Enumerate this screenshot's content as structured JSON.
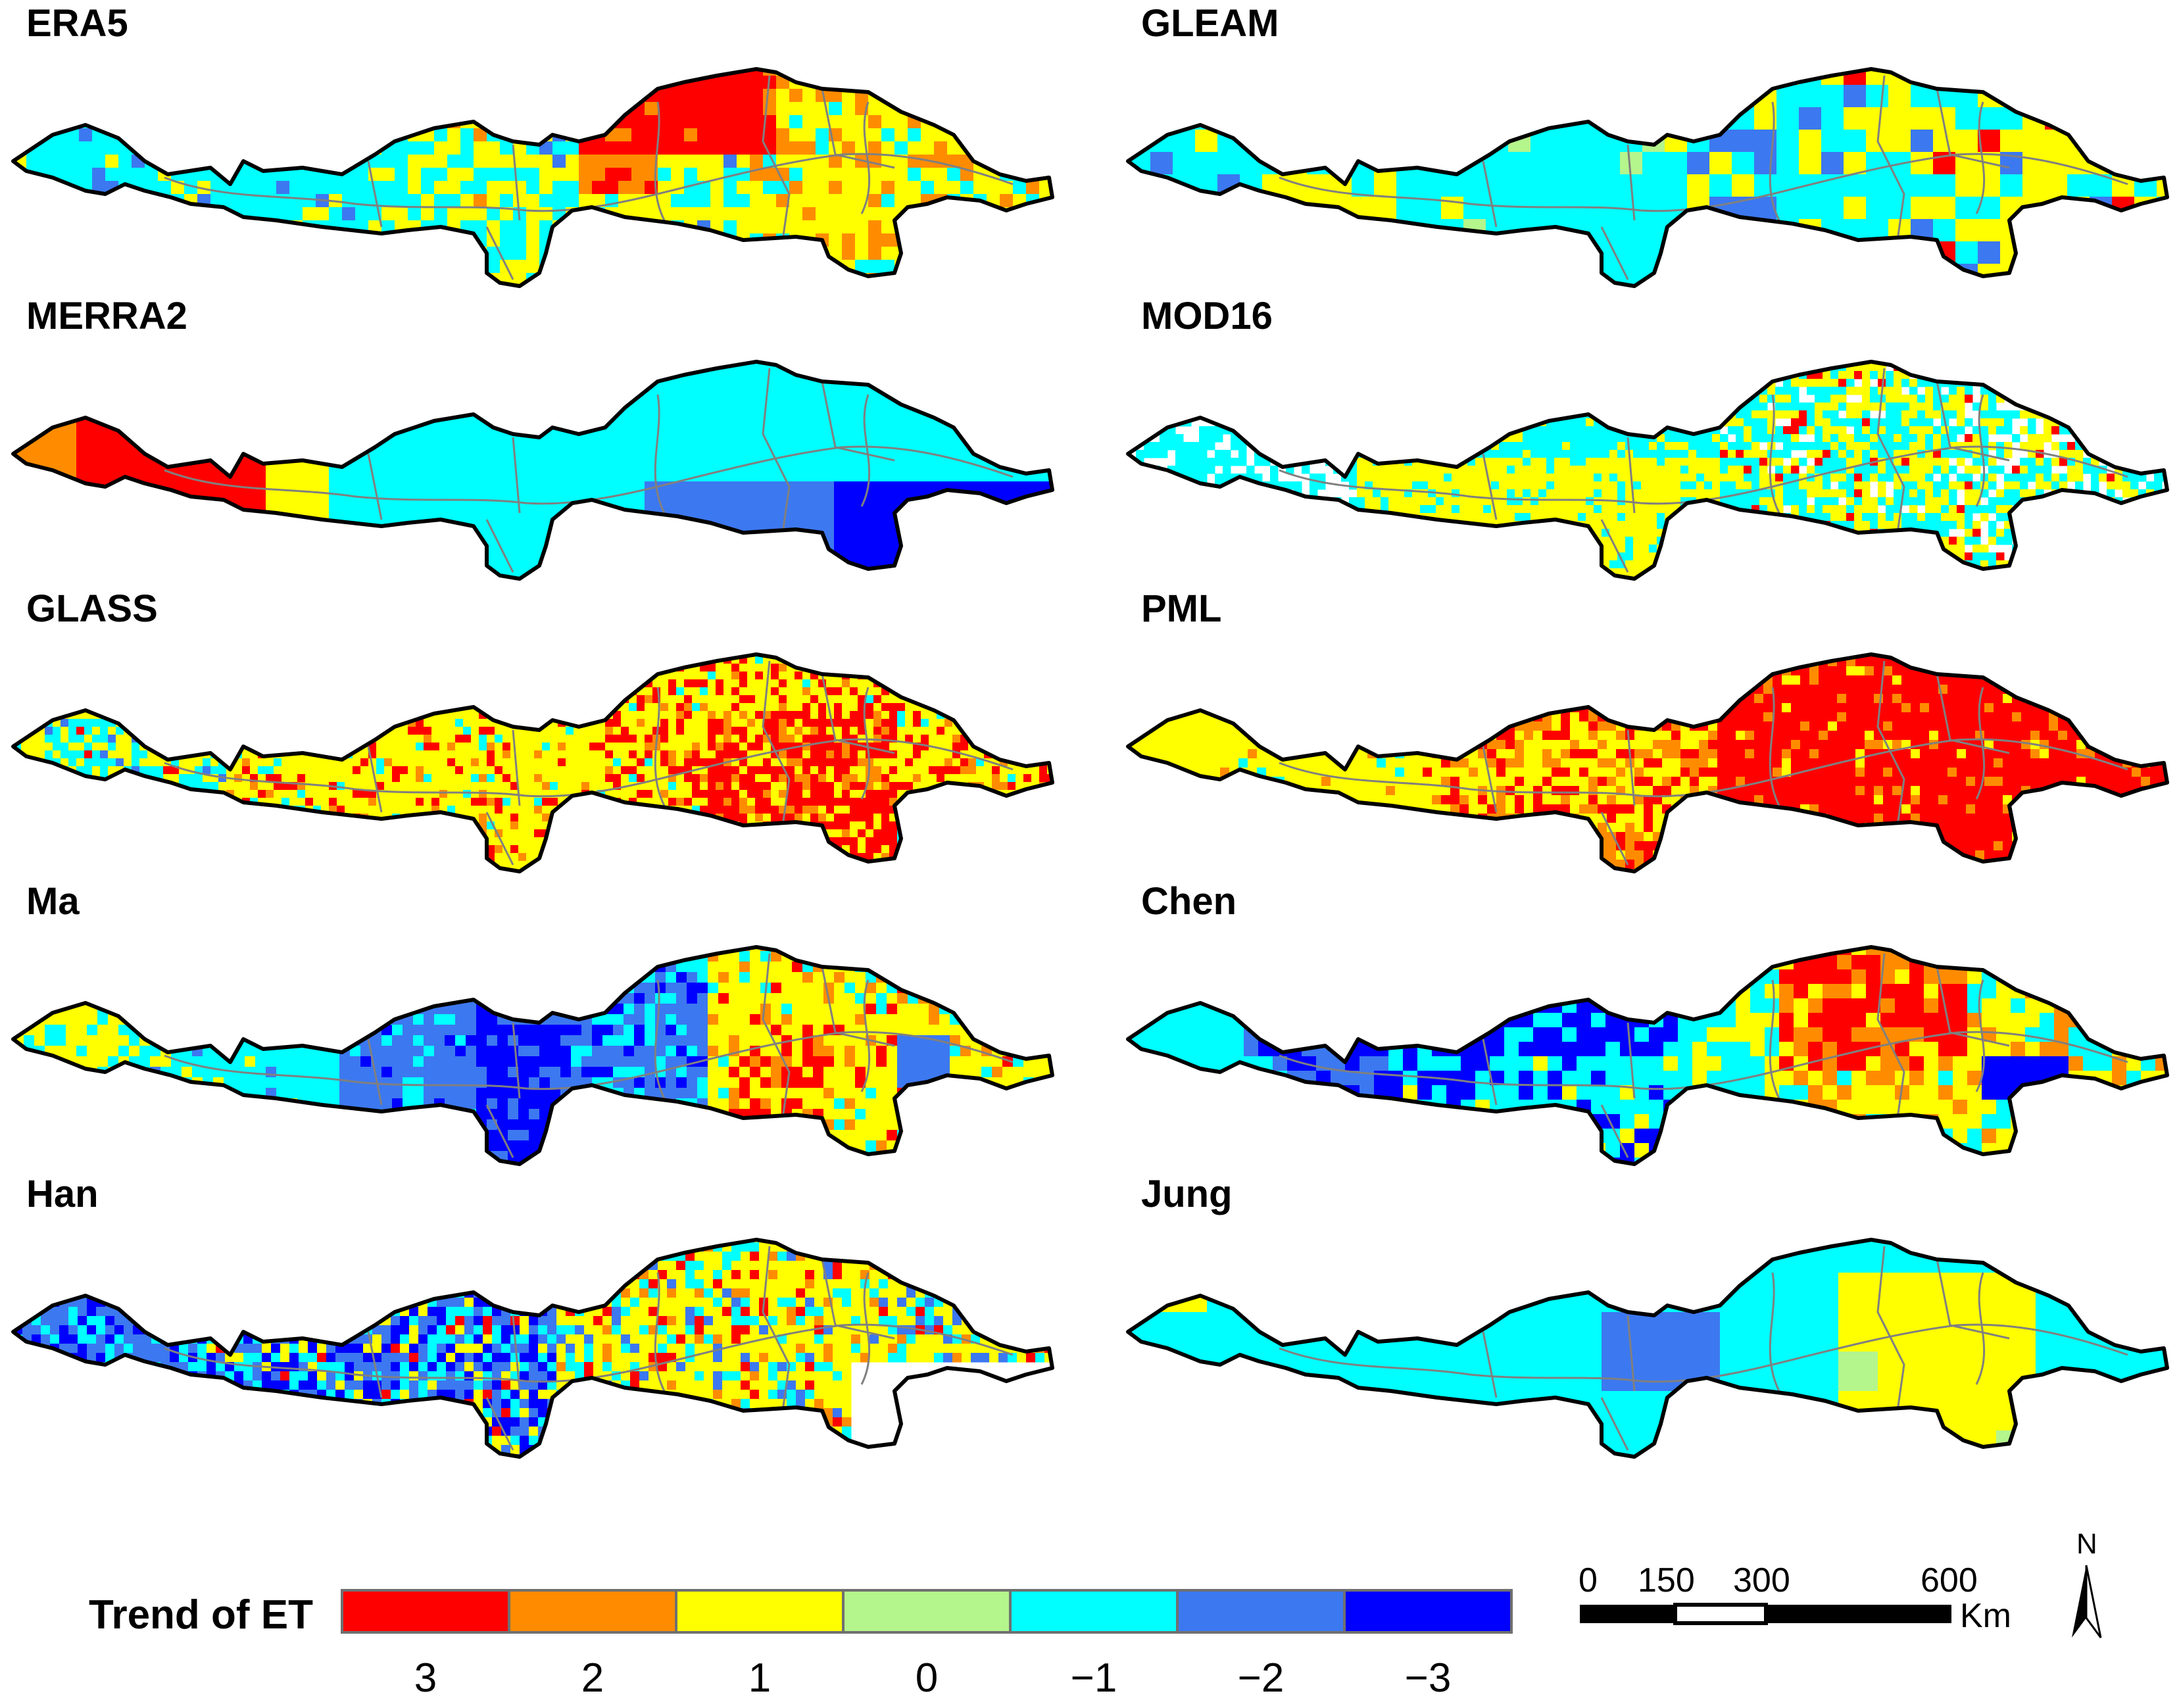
{
  "panels": [
    {
      "id": "era5",
      "title": "ERA5",
      "pattern": "era5"
    },
    {
      "id": "gleam",
      "title": "GLEAM",
      "pattern": "gleam"
    },
    {
      "id": "merra2",
      "title": "MERRA2",
      "pattern": "merra2"
    },
    {
      "id": "mod16",
      "title": "MOD16",
      "pattern": "mod16"
    },
    {
      "id": "glass",
      "title": "GLASS",
      "pattern": "glass"
    },
    {
      "id": "pml",
      "title": "PML",
      "pattern": "pml"
    },
    {
      "id": "ma",
      "title": "Ma",
      "pattern": "ma"
    },
    {
      "id": "chen",
      "title": "Chen",
      "pattern": "chen"
    },
    {
      "id": "han",
      "title": "Han",
      "pattern": "han"
    },
    {
      "id": "jung",
      "title": "Jung",
      "pattern": "jung"
    }
  ],
  "legend": {
    "title": "Trend of ET",
    "classes": [
      {
        "value": 3,
        "label": "3",
        "color": "#ff0000"
      },
      {
        "value": 2,
        "label": "2",
        "color": "#ff8c00"
      },
      {
        "value": 1,
        "label": "1",
        "color": "#ffff00"
      },
      {
        "value": 0,
        "label": "0",
        "color": "#b4f58c"
      },
      {
        "value": -1,
        "label": "−1",
        "color": "#00ffff"
      },
      {
        "value": -2,
        "label": "−2",
        "color": "#3c78f0"
      },
      {
        "value": -3,
        "label": "−3",
        "color": "#0000ff"
      }
    ]
  },
  "scale_bar": {
    "labels": [
      "0",
      "150",
      "300",
      "600"
    ],
    "unit": "Km"
  },
  "north_arrow": {
    "label": "N"
  },
  "colors": {
    "boundary": "#000000",
    "subbasin": "#808080",
    "nodata": "#ffffff"
  }
}
